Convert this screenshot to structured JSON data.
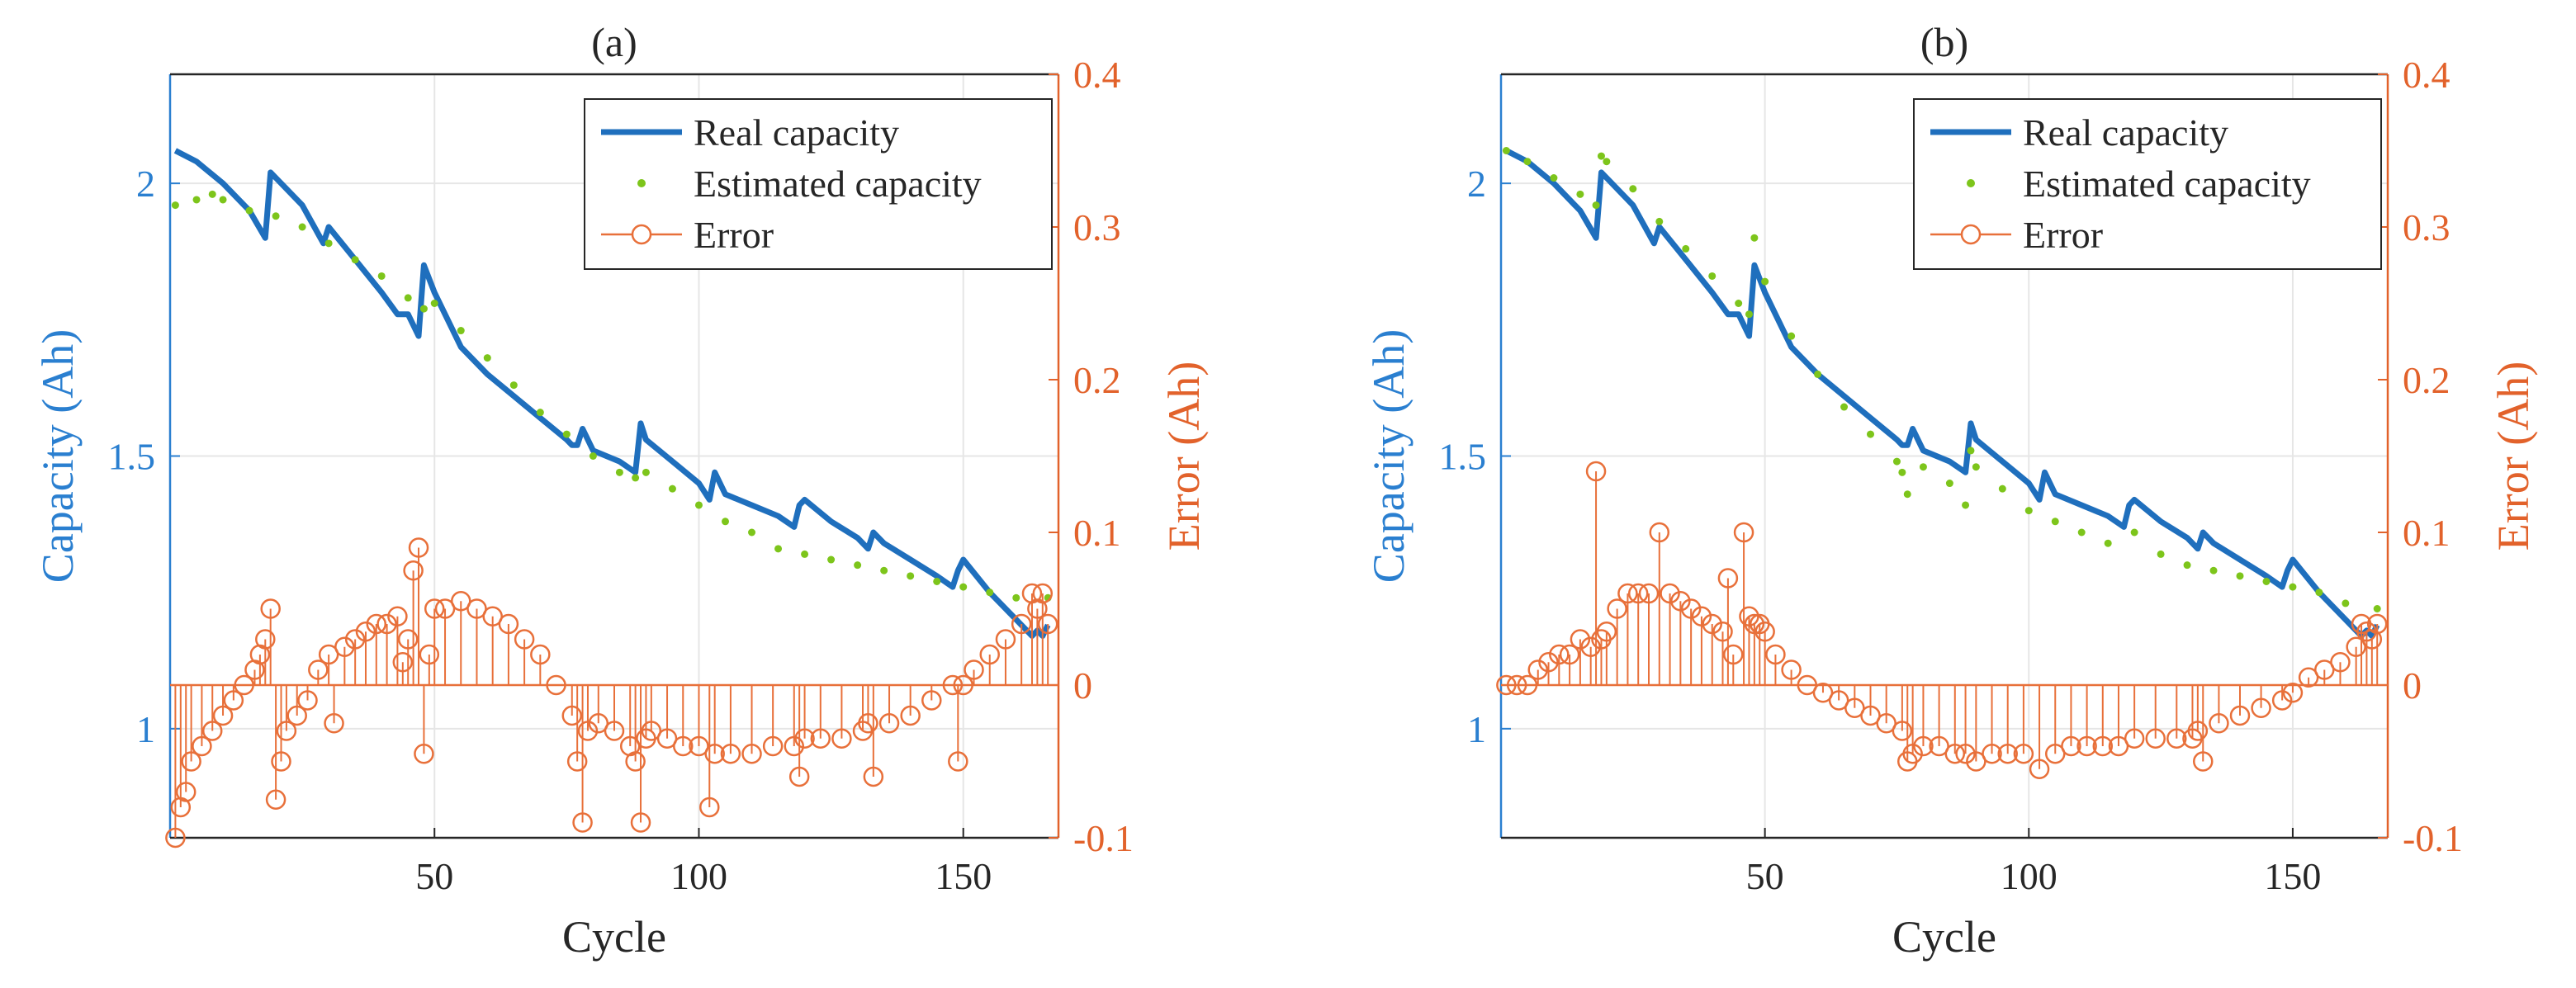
{
  "colors": {
    "real": "#1f6fbd",
    "estimated": "#7dc51b",
    "error": "#e8703a",
    "left_axis": "#2a7fd0",
    "right_axis": "#e2622b",
    "text": "#262626",
    "grid": "#e6e6e6"
  },
  "chart_data": [
    {
      "type": "line",
      "panel": "(a)",
      "title": "(a)",
      "xlabel": "Cycle",
      "ylabel_left": "Capacity (Ah)",
      "ylabel_right": "Error (Ah)",
      "xlim": [
        0,
        168
      ],
      "ylim_left": [
        0.8,
        2.2
      ],
      "ylim_right": [
        -0.1,
        0.4
      ],
      "xticks": [
        50,
        100,
        150
      ],
      "xtick_labels": [
        "50",
        "100",
        "150"
      ],
      "yticks_left": [
        1,
        1.5,
        2
      ],
      "ytick_labels_left": [
        "1",
        "1.5",
        "2"
      ],
      "yticks_right": [
        -0.1,
        0,
        0.1,
        0.2,
        0.3,
        0.4
      ],
      "ytick_labels_right": [
        "-0.1",
        "0",
        "0.1",
        "0.2",
        "0.3",
        "0.4"
      ],
      "grid": true,
      "legend": {
        "position": "top-right",
        "entries": [
          "Real capacity",
          "Estimated capacity",
          "Error"
        ]
      },
      "series": [
        {
          "name": "Real capacity",
          "axis": "left",
          "style": "line",
          "x": [
            1,
            5,
            10,
            15,
            18,
            19,
            20,
            25,
            29,
            30,
            35,
            40,
            43,
            45,
            46,
            47,
            48,
            50,
            55,
            60,
            65,
            70,
            75,
            76,
            77,
            78,
            80,
            85,
            88,
            89,
            90,
            95,
            100,
            102,
            103,
            105,
            110,
            115,
            118,
            119,
            120,
            125,
            130,
            132,
            133,
            135,
            140,
            145,
            148,
            149,
            150,
            155,
            160,
            163,
            164,
            165,
            166
          ],
          "y": [
            2.06,
            2.04,
            2.0,
            1.95,
            1.9,
            2.02,
            2.01,
            1.96,
            1.89,
            1.92,
            1.86,
            1.8,
            1.76,
            1.76,
            1.74,
            1.72,
            1.85,
            1.8,
            1.7,
            1.65,
            1.61,
            1.57,
            1.53,
            1.52,
            1.52,
            1.55,
            1.51,
            1.49,
            1.47,
            1.56,
            1.53,
            1.49,
            1.45,
            1.42,
            1.47,
            1.43,
            1.41,
            1.39,
            1.37,
            1.41,
            1.42,
            1.38,
            1.35,
            1.33,
            1.36,
            1.34,
            1.31,
            1.28,
            1.26,
            1.29,
            1.31,
            1.25,
            1.2,
            1.17,
            1.18,
            1.17,
            1.19
          ]
        },
        {
          "name": "Estimated capacity",
          "axis": "left",
          "style": "dots",
          "x": [
            1,
            5,
            8,
            10,
            15,
            20,
            25,
            30,
            35,
            40,
            45,
            48,
            50,
            55,
            60,
            65,
            70,
            75,
            80,
            85,
            88,
            90,
            95,
            100,
            105,
            110,
            115,
            120,
            125,
            130,
            135,
            140,
            145,
            150,
            155,
            160,
            166
          ],
          "y": [
            1.96,
            1.97,
            1.98,
            1.97,
            1.95,
            1.94,
            1.92,
            1.89,
            1.86,
            1.83,
            1.79,
            1.77,
            1.78,
            1.73,
            1.68,
            1.63,
            1.58,
            1.54,
            1.5,
            1.47,
            1.46,
            1.47,
            1.44,
            1.41,
            1.38,
            1.36,
            1.33,
            1.32,
            1.31,
            1.3,
            1.29,
            1.28,
            1.27,
            1.26,
            1.25,
            1.24,
            1.24
          ]
        },
        {
          "name": "Error",
          "axis": "right",
          "style": "stem",
          "x": [
            1,
            2,
            3,
            4,
            6,
            8,
            10,
            12,
            14,
            16,
            17,
            18,
            19,
            20,
            21,
            22,
            24,
            26,
            28,
            30,
            31,
            33,
            35,
            37,
            39,
            41,
            43,
            44,
            45,
            46,
            47,
            48,
            49,
            50,
            52,
            55,
            58,
            61,
            64,
            67,
            70,
            73,
            76,
            77,
            78,
            79,
            81,
            84,
            87,
            88,
            89,
            90,
            91,
            94,
            97,
            100,
            102,
            103,
            106,
            110,
            114,
            118,
            119,
            120,
            123,
            127,
            131,
            132,
            133,
            136,
            140,
            144,
            148,
            149,
            150,
            152,
            155,
            158,
            161,
            163,
            164,
            165,
            166
          ],
          "y": [
            -0.1,
            -0.08,
            -0.07,
            -0.05,
            -0.04,
            -0.03,
            -0.02,
            -0.01,
            0.0,
            0.01,
            0.02,
            0.03,
            0.05,
            -0.075,
            -0.05,
            -0.03,
            -0.02,
            -0.01,
            0.01,
            0.02,
            -0.025,
            0.025,
            0.03,
            0.035,
            0.04,
            0.04,
            0.045,
            0.015,
            0.03,
            0.075,
            0.09,
            -0.045,
            0.02,
            0.05,
            0.05,
            0.055,
            0.05,
            0.045,
            0.04,
            0.03,
            0.02,
            0.0,
            -0.02,
            -0.05,
            -0.09,
            -0.03,
            -0.025,
            -0.03,
            -0.04,
            -0.05,
            -0.09,
            -0.035,
            -0.03,
            -0.035,
            -0.04,
            -0.04,
            -0.08,
            -0.045,
            -0.045,
            -0.045,
            -0.04,
            -0.04,
            -0.06,
            -0.035,
            -0.035,
            -0.035,
            -0.03,
            -0.025,
            -0.06,
            -0.025,
            -0.02,
            -0.01,
            0.0,
            -0.05,
            0.0,
            0.01,
            0.02,
            0.03,
            0.04,
            0.06,
            0.05,
            0.06,
            0.04
          ]
        }
      ]
    },
    {
      "type": "line",
      "panel": "(b)",
      "title": "(b)",
      "xlabel": "Cycle",
      "ylabel_left": "Capacity (Ah)",
      "ylabel_right": "Error (Ah)",
      "xlim": [
        0,
        168
      ],
      "ylim_left": [
        0.8,
        2.2
      ],
      "ylim_right": [
        -0.1,
        0.4
      ],
      "xticks": [
        50,
        100,
        150
      ],
      "xtick_labels": [
        "50",
        "100",
        "150"
      ],
      "yticks_left": [
        1,
        1.5,
        2
      ],
      "ytick_labels_left": [
        "1",
        "1.5",
        "2"
      ],
      "yticks_right": [
        -0.1,
        0,
        0.1,
        0.2,
        0.3,
        0.4
      ],
      "ytick_labels_right": [
        "-0.1",
        "0",
        "0.1",
        "0.2",
        "0.3",
        "0.4"
      ],
      "grid": true,
      "legend": {
        "position": "top-right",
        "entries": [
          "Real capacity",
          "Estimated capacity",
          "Error"
        ]
      },
      "series": [
        {
          "name": "Real capacity",
          "axis": "left",
          "style": "line",
          "x": [
            1,
            5,
            10,
            15,
            18,
            19,
            20,
            25,
            29,
            30,
            35,
            40,
            43,
            45,
            46,
            47,
            48,
            50,
            55,
            60,
            65,
            70,
            75,
            76,
            77,
            78,
            80,
            85,
            88,
            89,
            90,
            95,
            100,
            102,
            103,
            105,
            110,
            115,
            118,
            119,
            120,
            125,
            130,
            132,
            133,
            135,
            140,
            145,
            148,
            149,
            150,
            155,
            160,
            163,
            164,
            165,
            166
          ],
          "y": [
            2.06,
            2.04,
            2.0,
            1.95,
            1.9,
            2.02,
            2.01,
            1.96,
            1.89,
            1.92,
            1.86,
            1.8,
            1.76,
            1.76,
            1.74,
            1.72,
            1.85,
            1.8,
            1.7,
            1.65,
            1.61,
            1.57,
            1.53,
            1.52,
            1.52,
            1.55,
            1.51,
            1.49,
            1.47,
            1.56,
            1.53,
            1.49,
            1.45,
            1.42,
            1.47,
            1.43,
            1.41,
            1.39,
            1.37,
            1.41,
            1.42,
            1.38,
            1.35,
            1.33,
            1.36,
            1.34,
            1.31,
            1.28,
            1.26,
            1.29,
            1.31,
            1.25,
            1.2,
            1.17,
            1.18,
            1.17,
            1.19
          ]
        },
        {
          "name": "Estimated capacity",
          "axis": "left",
          "style": "dots",
          "x": [
            1,
            5,
            10,
            15,
            18,
            19,
            20,
            25,
            30,
            35,
            40,
            45,
            47,
            48,
            50,
            55,
            60,
            65,
            70,
            75,
            76,
            77,
            80,
            85,
            88,
            89,
            90,
            95,
            100,
            105,
            110,
            115,
            120,
            125,
            130,
            135,
            140,
            145,
            150,
            155,
            160,
            166
          ],
          "y": [
            2.06,
            2.04,
            2.01,
            1.98,
            1.96,
            2.05,
            2.04,
            1.99,
            1.93,
            1.88,
            1.83,
            1.78,
            1.76,
            1.9,
            1.82,
            1.72,
            1.65,
            1.59,
            1.54,
            1.49,
            1.47,
            1.43,
            1.48,
            1.45,
            1.41,
            1.51,
            1.48,
            1.44,
            1.4,
            1.38,
            1.36,
            1.34,
            1.36,
            1.32,
            1.3,
            1.29,
            1.28,
            1.27,
            1.26,
            1.25,
            1.23,
            1.22
          ]
        },
        {
          "name": "Error",
          "axis": "right",
          "style": "stem",
          "x": [
            1,
            3,
            5,
            7,
            9,
            11,
            13,
            15,
            17,
            18,
            19,
            20,
            22,
            24,
            26,
            28,
            30,
            32,
            34,
            36,
            38,
            40,
            42,
            43,
            44,
            46,
            47,
            48,
            49,
            50,
            52,
            55,
            58,
            61,
            64,
            67,
            70,
            73,
            76,
            77,
            78,
            80,
            83,
            86,
            88,
            90,
            93,
            96,
            99,
            102,
            105,
            108,
            111,
            114,
            117,
            120,
            124,
            128,
            131,
            132,
            133,
            136,
            140,
            144,
            148,
            150,
            153,
            156,
            159,
            162,
            163,
            164,
            165,
            166
          ],
          "y": [
            0.0,
            0.0,
            0.0,
            0.01,
            0.015,
            0.02,
            0.02,
            0.03,
            0.025,
            0.14,
            0.03,
            0.035,
            0.05,
            0.06,
            0.06,
            0.06,
            0.1,
            0.06,
            0.055,
            0.05,
            0.045,
            0.04,
            0.035,
            0.07,
            0.02,
            0.1,
            0.045,
            0.04,
            0.04,
            0.035,
            0.02,
            0.01,
            0.0,
            -0.005,
            -0.01,
            -0.015,
            -0.02,
            -0.025,
            -0.03,
            -0.05,
            -0.045,
            -0.04,
            -0.04,
            -0.045,
            -0.045,
            -0.05,
            -0.045,
            -0.045,
            -0.045,
            -0.055,
            -0.045,
            -0.04,
            -0.04,
            -0.04,
            -0.04,
            -0.035,
            -0.035,
            -0.035,
            -0.035,
            -0.03,
            -0.05,
            -0.025,
            -0.02,
            -0.015,
            -0.01,
            -0.005,
            0.005,
            0.01,
            0.015,
            0.025,
            0.04,
            0.035,
            0.03,
            0.04
          ]
        }
      ]
    }
  ]
}
